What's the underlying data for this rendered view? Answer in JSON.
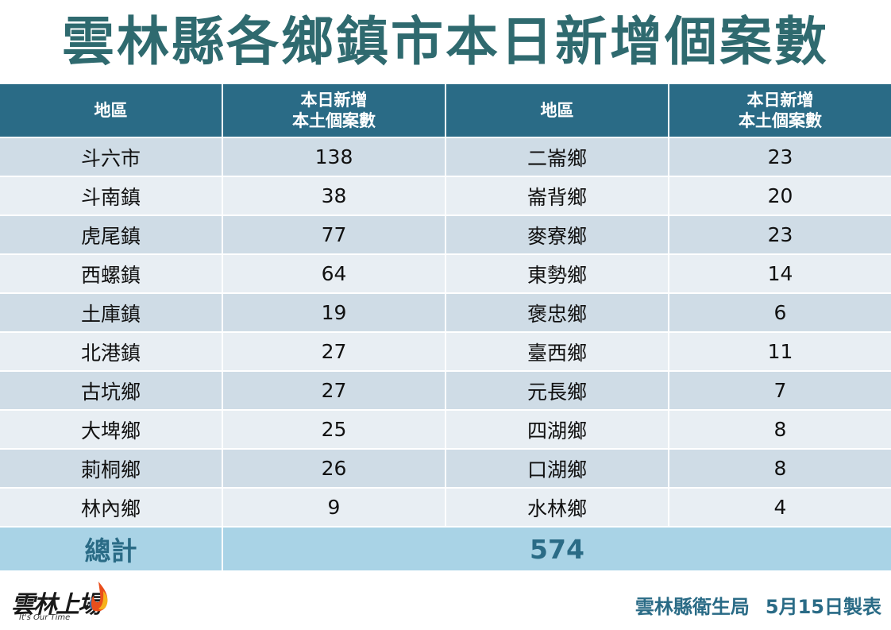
{
  "title": "雲林縣各鄉鎮市本日新增個案數",
  "table": {
    "headers": {
      "area": "地區",
      "count_line1": "本日新增",
      "count_line2": "本土個案數"
    },
    "rows": [
      {
        "left_area": "斗六市",
        "left_count": "138",
        "right_area": "二崙鄉",
        "right_count": "23"
      },
      {
        "left_area": "斗南鎮",
        "left_count": "38",
        "right_area": "崙背鄉",
        "right_count": "20"
      },
      {
        "left_area": "虎尾鎮",
        "left_count": "77",
        "right_area": "麥寮鄉",
        "right_count": "23"
      },
      {
        "left_area": "西螺鎮",
        "left_count": "64",
        "right_area": "東勢鄉",
        "right_count": "14"
      },
      {
        "left_area": "土庫鎮",
        "left_count": "19",
        "right_area": "褒忠鄉",
        "right_count": "6"
      },
      {
        "left_area": "北港鎮",
        "left_count": "27",
        "right_area": "臺西鄉",
        "right_count": "11"
      },
      {
        "left_area": "古坑鄉",
        "left_count": "27",
        "right_area": "元長鄉",
        "right_count": "7"
      },
      {
        "left_area": "大埤鄉",
        "left_count": "25",
        "right_area": "四湖鄉",
        "right_count": "8"
      },
      {
        "left_area": "莿桐鄉",
        "left_count": "26",
        "right_area": "口湖鄉",
        "right_count": "8"
      },
      {
        "left_area": "林內鄉",
        "left_count": "9",
        "right_area": "水林鄉",
        "right_count": "4"
      }
    ],
    "total_label": "總計",
    "total_value": "574"
  },
  "logo": {
    "text": "雲林上場",
    "subtitle": "It's Our Time"
  },
  "footer": {
    "agency": "雲林縣衛生局",
    "date_note": "5月15日製表"
  },
  "colors": {
    "title": "#2f6a6f",
    "header_bg": "#2a6b86",
    "row_odd": "#cfdce6",
    "row_even": "#e8eef3",
    "total_bg": "#a9d3e6"
  }
}
